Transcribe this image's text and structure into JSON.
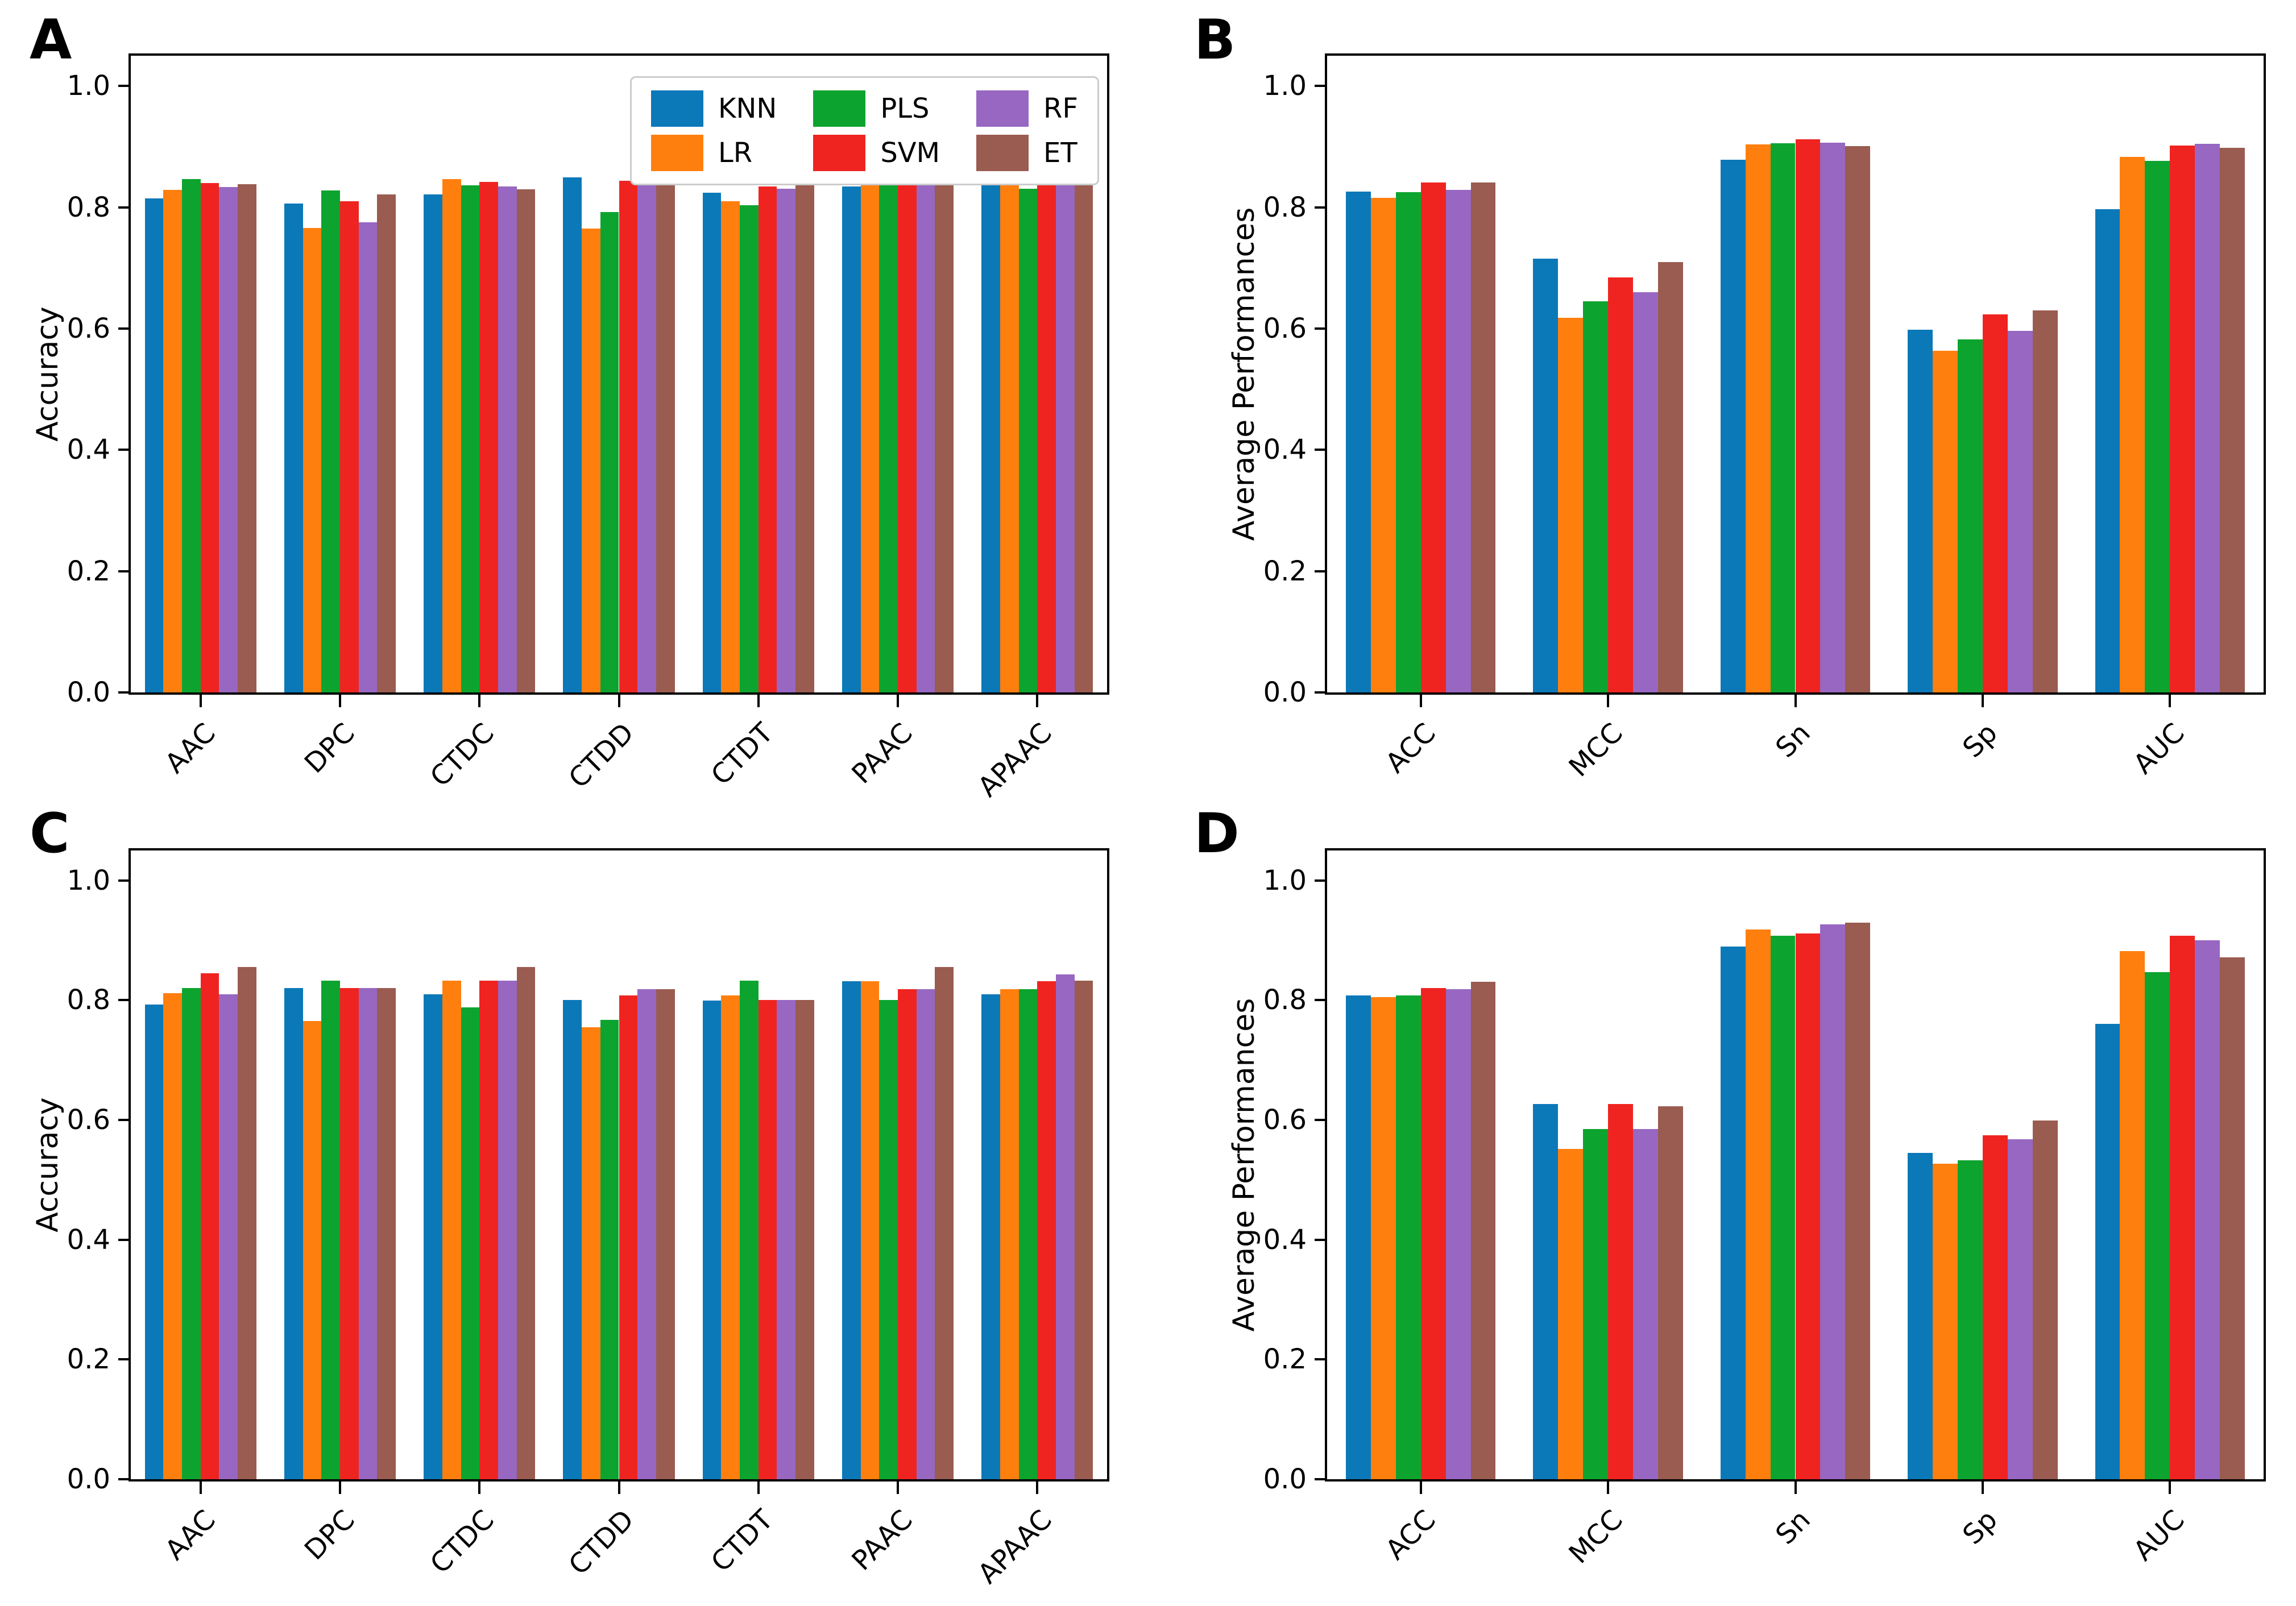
{
  "figure": {
    "background": "#ffffff",
    "text_color": "#000000",
    "panel_letters": [
      "A",
      "B",
      "C",
      "D"
    ]
  },
  "legend": {
    "columns": 3,
    "rows": 2,
    "order": [
      "KNN",
      "LR",
      "PLS",
      "SVM",
      "RF",
      "ET"
    ],
    "location": "upper right inside panel A"
  },
  "series_colors": {
    "KNN": "#0b78b8",
    "LR": "#ff7f0e",
    "PLS": "#0ca42f",
    "SVM": "#ef2420",
    "RF": "#9767c2",
    "ET": "#9a5b50"
  },
  "chart_data": [
    {
      "id": "A",
      "panel_label": "A",
      "type": "bar",
      "title": "",
      "xlabel": "",
      "ylabel": "Accuracy",
      "ylim": [
        0,
        1.05
      ],
      "yticks": [
        0.0,
        0.2,
        0.4,
        0.6,
        0.8,
        1.0
      ],
      "grid": false,
      "legend": true,
      "xtick_rotation": 45,
      "categories": [
        "AAC",
        "DPC",
        "CTDC",
        "CTDD",
        "CTDT",
        "PAAC",
        "APAAC"
      ],
      "series": [
        {
          "name": "KNN",
          "color": "#0b78b8",
          "values": [
            0.815,
            0.806,
            0.821,
            0.849,
            0.824,
            0.834,
            0.84
          ]
        },
        {
          "name": "LR",
          "color": "#ff7f0e",
          "values": [
            0.829,
            0.766,
            0.847,
            0.765,
            0.81,
            0.842,
            0.84
          ]
        },
        {
          "name": "PLS",
          "color": "#0ca42f",
          "values": [
            0.847,
            0.828,
            0.836,
            0.792,
            0.803,
            0.839,
            0.831
          ]
        },
        {
          "name": "SVM",
          "color": "#ef2420",
          "values": [
            0.84,
            0.81,
            0.842,
            0.844,
            0.834,
            0.849,
            0.862
          ]
        },
        {
          "name": "RF",
          "color": "#9767c2",
          "values": [
            0.833,
            0.775,
            0.834,
            0.84,
            0.831,
            0.847,
            0.845
          ]
        },
        {
          "name": "ET",
          "color": "#9a5b50",
          "values": [
            0.838,
            0.821,
            0.83,
            0.857,
            0.839,
            0.857,
            0.854
          ]
        }
      ]
    },
    {
      "id": "B",
      "panel_label": "B",
      "type": "bar",
      "title": "",
      "xlabel": "",
      "ylabel": "Average Performances",
      "ylim": [
        0,
        1.05
      ],
      "yticks": [
        0.0,
        0.2,
        0.4,
        0.6,
        0.8,
        1.0
      ],
      "grid": false,
      "legend": false,
      "xtick_rotation": 45,
      "categories": [
        "ACC",
        "MCC",
        "Sn",
        "Sp",
        "AUC"
      ],
      "series": [
        {
          "name": "KNN",
          "color": "#0b78b8",
          "values": [
            0.826,
            0.715,
            0.878,
            0.598,
            0.797
          ]
        },
        {
          "name": "LR",
          "color": "#ff7f0e",
          "values": [
            0.816,
            0.618,
            0.904,
            0.563,
            0.883
          ]
        },
        {
          "name": "PLS",
          "color": "#0ca42f",
          "values": [
            0.825,
            0.645,
            0.906,
            0.582,
            0.877
          ]
        },
        {
          "name": "SVM",
          "color": "#ef2420",
          "values": [
            0.841,
            0.684,
            0.912,
            0.623,
            0.902
          ]
        },
        {
          "name": "RF",
          "color": "#9767c2",
          "values": [
            0.829,
            0.66,
            0.907,
            0.596,
            0.905
          ]
        },
        {
          "name": "ET",
          "color": "#9a5b50",
          "values": [
            0.841,
            0.71,
            0.901,
            0.63,
            0.898
          ]
        }
      ]
    },
    {
      "id": "C",
      "panel_label": "C",
      "type": "bar",
      "title": "",
      "xlabel": "",
      "ylabel": "Accuracy",
      "ylim": [
        0,
        1.05
      ],
      "yticks": [
        0.0,
        0.2,
        0.4,
        0.6,
        0.8,
        1.0
      ],
      "grid": false,
      "legend": false,
      "xtick_rotation": 45,
      "categories": [
        "AAC",
        "DPC",
        "CTDC",
        "CTDD",
        "CTDT",
        "PAAC",
        "APAAC"
      ],
      "series": [
        {
          "name": "KNN",
          "color": "#0b78b8",
          "values": [
            0.793,
            0.82,
            0.81,
            0.8,
            0.799,
            0.832,
            0.81
          ]
        },
        {
          "name": "LR",
          "color": "#ff7f0e",
          "values": [
            0.812,
            0.765,
            0.833,
            0.755,
            0.808,
            0.832,
            0.818
          ]
        },
        {
          "name": "PLS",
          "color": "#0ca42f",
          "values": [
            0.82,
            0.833,
            0.788,
            0.767,
            0.833,
            0.8,
            0.818
          ]
        },
        {
          "name": "SVM",
          "color": "#ef2420",
          "values": [
            0.845,
            0.82,
            0.833,
            0.808,
            0.8,
            0.818,
            0.832
          ]
        },
        {
          "name": "RF",
          "color": "#9767c2",
          "values": [
            0.81,
            0.82,
            0.833,
            0.818,
            0.8,
            0.818,
            0.843
          ]
        },
        {
          "name": "ET",
          "color": "#9a5b50",
          "values": [
            0.855,
            0.82,
            0.855,
            0.818,
            0.8,
            0.855,
            0.833
          ]
        }
      ]
    },
    {
      "id": "D",
      "panel_label": "D",
      "type": "bar",
      "title": "",
      "xlabel": "",
      "ylabel": "Average Performances",
      "ylim": [
        0,
        1.05
      ],
      "yticks": [
        0.0,
        0.2,
        0.4,
        0.6,
        0.8,
        1.0
      ],
      "grid": false,
      "legend": false,
      "xtick_rotation": 45,
      "categories": [
        "ACC",
        "MCC",
        "Sn",
        "Sp",
        "AUC"
      ],
      "series": [
        {
          "name": "KNN",
          "color": "#0b78b8",
          "values": [
            0.808,
            0.627,
            0.89,
            0.545,
            0.76
          ]
        },
        {
          "name": "LR",
          "color": "#ff7f0e",
          "values": [
            0.805,
            0.552,
            0.918,
            0.527,
            0.882
          ]
        },
        {
          "name": "PLS",
          "color": "#0ca42f",
          "values": [
            0.808,
            0.585,
            0.908,
            0.533,
            0.847
          ]
        },
        {
          "name": "SVM",
          "color": "#ef2420",
          "values": [
            0.82,
            0.627,
            0.911,
            0.574,
            0.908
          ]
        },
        {
          "name": "RF",
          "color": "#9767c2",
          "values": [
            0.818,
            0.585,
            0.927,
            0.568,
            0.9
          ]
        },
        {
          "name": "ET",
          "color": "#9a5b50",
          "values": [
            0.831,
            0.623,
            0.929,
            0.599,
            0.872
          ]
        }
      ]
    }
  ]
}
